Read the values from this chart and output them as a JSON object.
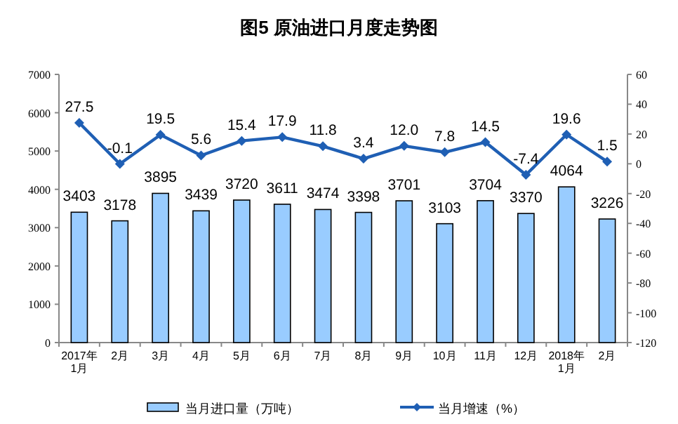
{
  "chart_data": {
    "type": "bar",
    "title": "图5  原油进口月度走势图",
    "categories": [
      "2017年\n1月",
      "2月",
      "3月",
      "4月",
      "5月",
      "6月",
      "7月",
      "8月",
      "9月",
      "10月",
      "11月",
      "12月",
      "2018年\n1月",
      "2月"
    ],
    "series": [
      {
        "name": "当月进口量（万吨）",
        "color": "#99ccff",
        "values": [
          3403,
          3178,
          3895,
          3439,
          3720,
          3611,
          3474,
          3398,
          3701,
          3103,
          3704,
          3370,
          4064,
          3226
        ]
      },
      {
        "name": "当月增速（%）",
        "type": "line",
        "axis": "y2",
        "color": "#1f5fb4",
        "marker": "diamond",
        "values": [
          27.5,
          -0.1,
          19.5,
          5.6,
          15.4,
          17.9,
          11.8,
          3.4,
          12.0,
          7.8,
          14.5,
          -7.4,
          19.6,
          1.5
        ]
      }
    ],
    "value_labels": [
      [
        "3403",
        "3178",
        "3895",
        "3439",
        "3720",
        "3611",
        "3474",
        "3398",
        "3701",
        "3103",
        "3704",
        "3370",
        "4064",
        "3226"
      ],
      [
        "27.5",
        "-0.1",
        "19.5",
        "5.6",
        "15.4",
        "17.9",
        "11.8",
        "3.4",
        "12.0",
        "7.8",
        "14.5",
        "-7.4",
        "19.6",
        "1.5"
      ]
    ],
    "ylim": [
      0,
      7000
    ],
    "yticks": [
      0,
      1000,
      2000,
      3000,
      4000,
      5000,
      6000,
      7000
    ],
    "y2lim": [
      -120,
      60
    ],
    "y2ticks": [
      -120,
      -100,
      -80,
      -60,
      -40,
      -20,
      0,
      20,
      40,
      60
    ],
    "grid": false,
    "legend": "bottom"
  }
}
